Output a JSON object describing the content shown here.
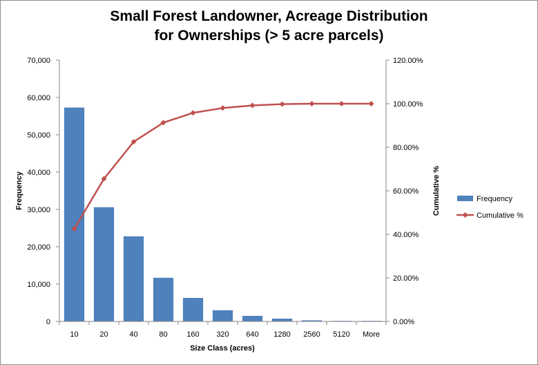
{
  "chart_data": {
    "type": "bar",
    "title_line1": "Small Forest Landowner, Acreage Distribution",
    "title_line2": "for Ownerships (> 5 acre parcels)",
    "xlabel": "Size Class (acres)",
    "ylabel": "Frequency",
    "y2label": "Cumulative %",
    "categories": [
      "10",
      "20",
      "40",
      "80",
      "160",
      "320",
      "640",
      "1280",
      "2560",
      "5120",
      "More"
    ],
    "ylim": [
      0,
      70000
    ],
    "y_ticks": [
      0,
      10000,
      20000,
      30000,
      40000,
      50000,
      60000,
      70000
    ],
    "y_tick_labels": [
      "0",
      "10,000",
      "20,000",
      "30,000",
      "40,000",
      "50,000",
      "60,000",
      "70,000"
    ],
    "y2lim": [
      0,
      120
    ],
    "y2_ticks": [
      0,
      20,
      40,
      60,
      80,
      100,
      120
    ],
    "y2_tick_labels": [
      "0.00%",
      "20.00%",
      "40.00%",
      "60.00%",
      "80.00%",
      "100.00%",
      "120.00%"
    ],
    "series": [
      {
        "name": "Frequency",
        "type": "bar",
        "axis": "left",
        "color": "#4f81bd",
        "values": [
          57300,
          30600,
          22800,
          11700,
          6300,
          3000,
          1500,
          750,
          300,
          150,
          150
        ]
      },
      {
        "name": "Cumulative %",
        "type": "line",
        "axis": "right",
        "color": "#c0504d",
        "values": [
          42.5,
          65.5,
          82.5,
          91.3,
          95.8,
          98.0,
          99.2,
          99.8,
          100.0,
          100.0,
          100.0
        ]
      }
    ],
    "legend_position": "right",
    "grid": false
  }
}
